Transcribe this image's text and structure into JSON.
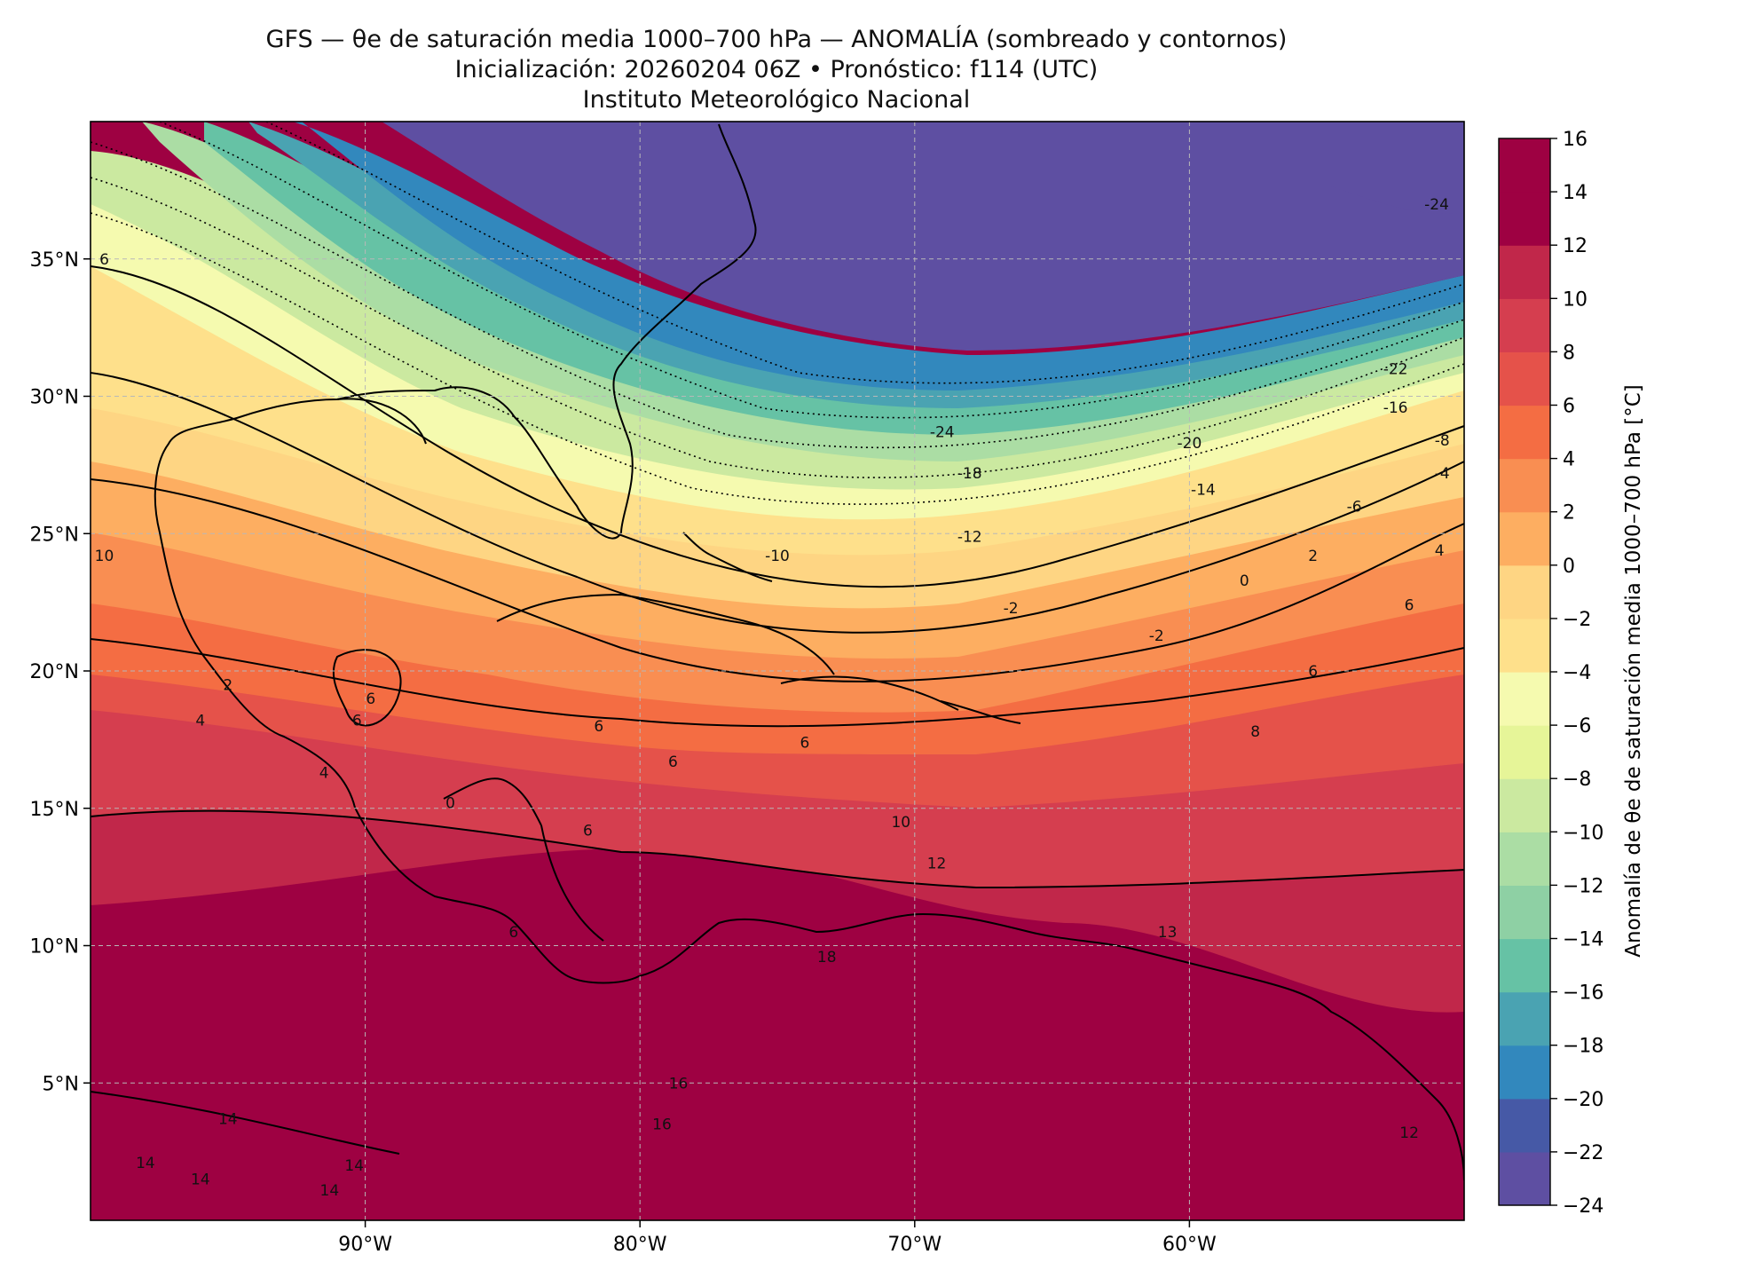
{
  "title": {
    "line1": "GFS — θe de saturación media 1000–700 hPa — ANOMALÍA (sombreado y contornos)",
    "line2": "Inicialización: 20260204 06Z   •   Pronóstico: f114 (UTC)",
    "line3": "Instituto Meteorológico Nacional"
  },
  "map": {
    "lon_range": [
      -100,
      -50
    ],
    "lat_range": [
      0,
      40
    ],
    "lon_ticks": [
      {
        "lon": -90,
        "label": "90°W"
      },
      {
        "lon": -80,
        "label": "80°W"
      },
      {
        "lon": -70,
        "label": "70°W"
      },
      {
        "lon": -60,
        "label": "60°W"
      }
    ],
    "lat_ticks": [
      {
        "lat": 35,
        "label": "35°N"
      },
      {
        "lat": 30,
        "label": "30°N"
      },
      {
        "lat": 25,
        "label": "25°N"
      },
      {
        "lat": 20,
        "label": "20°N"
      },
      {
        "lat": 15,
        "label": "15°N"
      },
      {
        "lat": 10,
        "label": "10°N"
      },
      {
        "lat": 5,
        "label": "5°N"
      }
    ],
    "contour_labels": [
      {
        "text": "-24",
        "lon": -51,
        "lat": 37
      },
      {
        "text": "-24",
        "lon": -69,
        "lat": 28.7
      },
      {
        "text": "-22",
        "lon": -52.5,
        "lat": 31
      },
      {
        "text": "-20",
        "lon": -60,
        "lat": 28.3
      },
      {
        "text": "-18",
        "lon": -68,
        "lat": 27.2
      },
      {
        "text": "-16",
        "lon": -52.5,
        "lat": 29.6
      },
      {
        "text": "-14",
        "lon": -59.5,
        "lat": 26.6
      },
      {
        "text": "-12",
        "lon": -68,
        "lat": 24.9
      },
      {
        "text": "-10",
        "lon": -75,
        "lat": 24.2
      },
      {
        "text": "-8",
        "lon": -50.8,
        "lat": 28.4
      },
      {
        "text": "-6",
        "lon": -54,
        "lat": 26
      },
      {
        "text": "-4",
        "lon": -50.8,
        "lat": 27.2
      },
      {
        "text": "-2",
        "lon": -66.5,
        "lat": 22.3
      },
      {
        "text": "-2",
        "lon": -61.2,
        "lat": 21.3
      },
      {
        "text": "0",
        "lon": -58,
        "lat": 23.3
      },
      {
        "text": "2",
        "lon": -55.5,
        "lat": 24.2
      },
      {
        "text": "4",
        "lon": -50.9,
        "lat": 24.4
      },
      {
        "text": "6",
        "lon": -52,
        "lat": 22.4
      },
      {
        "text": "6",
        "lon": -55.5,
        "lat": 20
      },
      {
        "text": "8",
        "lon": -57.6,
        "lat": 17.8
      },
      {
        "text": "10",
        "lon": -70.5,
        "lat": 14.5
      },
      {
        "text": "12",
        "lon": -69.2,
        "lat": 13
      },
      {
        "text": "6",
        "lon": -78.8,
        "lat": 16.7
      },
      {
        "text": "6",
        "lon": -74,
        "lat": 17.4
      },
      {
        "text": "6",
        "lon": -81.5,
        "lat": 18
      },
      {
        "text": "6",
        "lon": -81.9,
        "lat": 14.2
      },
      {
        "text": "6",
        "lon": -90.3,
        "lat": 18.2
      },
      {
        "text": "6",
        "lon": -89.8,
        "lat": 19
      },
      {
        "text": "6",
        "lon": -84.6,
        "lat": 10.5
      },
      {
        "text": "2",
        "lon": -95,
        "lat": 19.5
      },
      {
        "text": "4",
        "lon": -96,
        "lat": 18.2
      },
      {
        "text": "4",
        "lon": -91.5,
        "lat": 16.3
      },
      {
        "text": "0",
        "lon": -86.9,
        "lat": 15.2
      },
      {
        "text": "6",
        "lon": -99.5,
        "lat": 35
      },
      {
        "text": "10",
        "lon": -99.5,
        "lat": 24.2
      },
      {
        "text": "14",
        "lon": -95,
        "lat": 3.7
      },
      {
        "text": "14",
        "lon": -98,
        "lat": 2.1
      },
      {
        "text": "14",
        "lon": -96,
        "lat": 1.5
      },
      {
        "text": "14",
        "lon": -90.4,
        "lat": 2
      },
      {
        "text": "14",
        "lon": -91.3,
        "lat": 1.1
      },
      {
        "text": "16",
        "lon": -78.6,
        "lat": 5
      },
      {
        "text": "16",
        "lon": -79.2,
        "lat": 3.5
      },
      {
        "text": "18",
        "lon": -73.2,
        "lat": 9.6
      },
      {
        "text": "13",
        "lon": -60.8,
        "lat": 10.5
      },
      {
        "text": "12",
        "lon": -52,
        "lat": 3.2
      }
    ]
  },
  "colorbar": {
    "label": "Anomalía de θe de saturación media 1000–700 hPa [°C]",
    "min": -24,
    "max": 16,
    "levels": [
      -24,
      -22,
      -20,
      -18,
      -16,
      -14,
      -12,
      -10,
      -8,
      -6,
      -4,
      -2,
      0,
      2,
      4,
      6,
      8,
      10,
      12,
      14,
      16
    ],
    "tick_labels": [
      "−24",
      "−22",
      "−20",
      "−18",
      "−16",
      "−14",
      "−12",
      "−10",
      "−8",
      "−6",
      "−4",
      "−2",
      "0",
      "2",
      "4",
      "6",
      "8",
      "10",
      "12",
      "14",
      "16"
    ],
    "colors": [
      "#5e4fa2",
      "#4659a6",
      "#3288bd",
      "#4aa3b2",
      "#66c2a5",
      "#8ed0a4",
      "#abdda4",
      "#cbe9a0",
      "#e6f598",
      "#f5faaf",
      "#fee08b",
      "#fed583",
      "#fdae61",
      "#f98e52",
      "#f46d43",
      "#e5524a",
      "#d53e4f",
      "#c1274a",
      "#9e0142",
      "#9e0142"
    ]
  }
}
